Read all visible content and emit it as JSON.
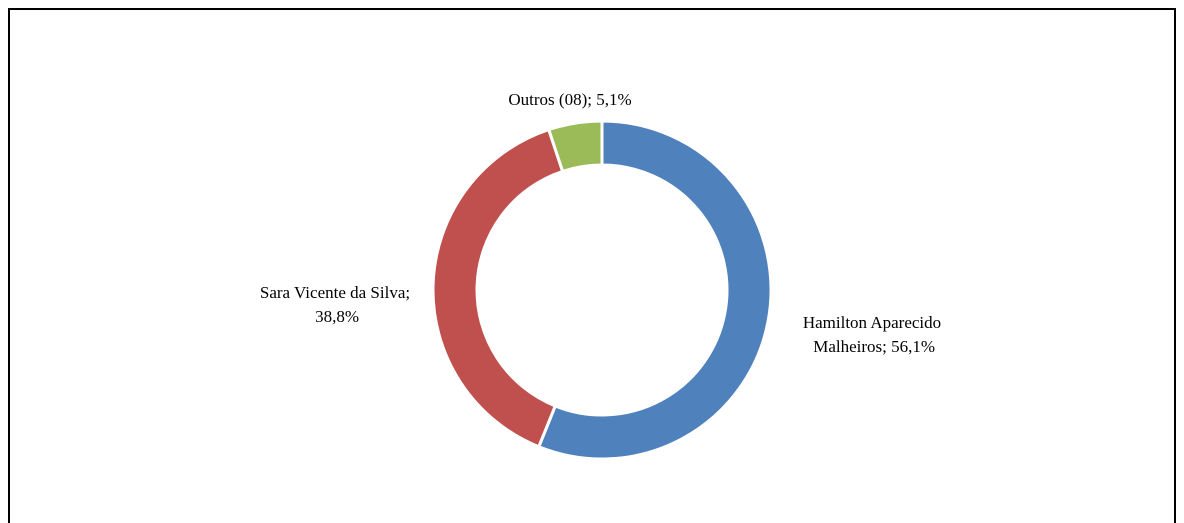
{
  "chart_data": {
    "type": "donut",
    "labels": [
      "Hamilton Aparecido Malheiros; 56,1%",
      "Sara Vicente da Silva; 38,8%",
      "Outros (08); 5,1%"
    ],
    "values": [
      56.1,
      38.8,
      5.1
    ],
    "colors": [
      "#4f81bd",
      "#c0504d",
      "#9bbb59"
    ]
  }
}
